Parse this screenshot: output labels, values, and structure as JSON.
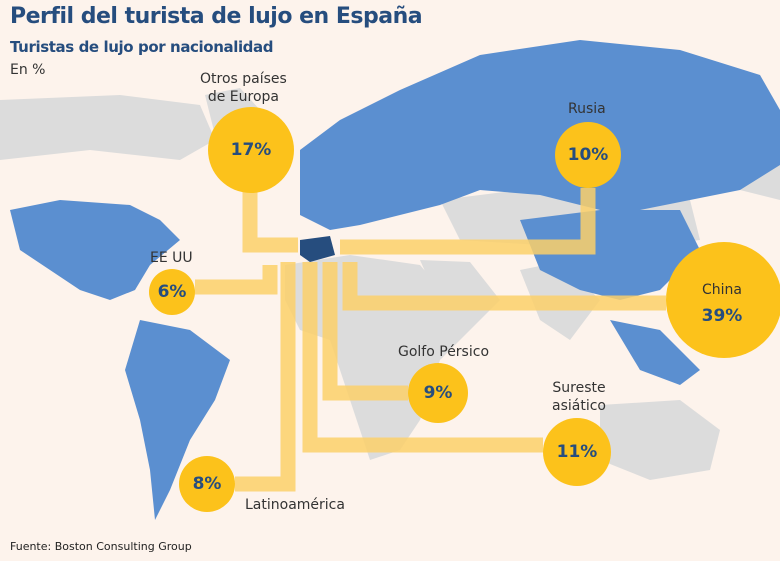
{
  "header": {
    "title": "Perfil del turista de lujo en España",
    "subtitle": "Turistas de lujo por nacionalidad",
    "unit": "En %"
  },
  "source": "Fuente: Boston Consulting Group",
  "colors": {
    "title": "#264d7e",
    "highlight_land": "#5b8fd0",
    "other_land": "#dcdcdc",
    "bubble": "#fcc21b",
    "connector": "#fcd06a",
    "spain": "#264d7e"
  },
  "chart_data": {
    "type": "bubble-map",
    "title": "Turistas de lujo por nacionalidad",
    "unit": "%",
    "categories": [
      "Otros países de Europa",
      "Rusia",
      "EE UU",
      "China",
      "Golfo Pérsico",
      "Sureste asiático",
      "Latinoamérica"
    ],
    "values": [
      17,
      10,
      6,
      39,
      9,
      11,
      8
    ],
    "labels": {
      "europa": "Otros países\nde Europa",
      "rusia": "Rusia",
      "eeuu": "EE UU",
      "china": "China",
      "golfo": "Golfo Pérsico",
      "sureste": "Sureste\nasiático",
      "latam": "Latinoamérica"
    },
    "pct": {
      "europa": "17%",
      "rusia": "10%",
      "eeuu": "6%",
      "china": "39%",
      "golfo": "9%",
      "sureste": "11%",
      "latam": "8%"
    }
  }
}
